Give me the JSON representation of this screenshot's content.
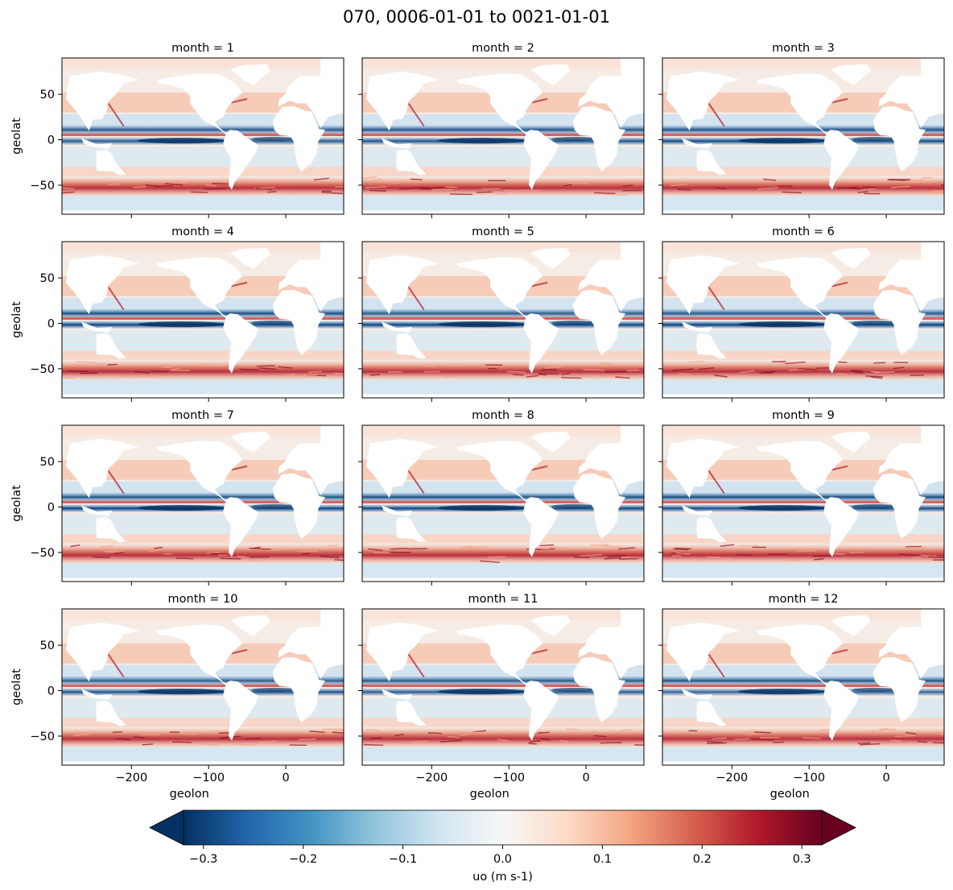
{
  "figure": {
    "suptitle": "070, 0006-01-01 to 0021-01-01"
  },
  "chart_data": {
    "type": "heatmap",
    "title": "070, 0006-01-01 to 0021-01-01",
    "variable": "uo",
    "xlabel": "geolon",
    "ylabel": "geolat",
    "xlim": [
      -290,
      75
    ],
    "ylim": [
      -82,
      90
    ],
    "xticks": [
      -200,
      -100,
      0
    ],
    "yticks": [
      -50,
      0,
      50
    ],
    "xtick_labels": [
      "−200",
      "−100",
      "0"
    ],
    "ytick_labels": [
      "−50",
      "0",
      "50"
    ],
    "panels": [
      {
        "title": "month = 1",
        "month": 1
      },
      {
        "title": "month = 2",
        "month": 2
      },
      {
        "title": "month = 3",
        "month": 3
      },
      {
        "title": "month = 4",
        "month": 4
      },
      {
        "title": "month = 5",
        "month": 5
      },
      {
        "title": "month = 6",
        "month": 6
      },
      {
        "title": "month = 7",
        "month": 7
      },
      {
        "title": "month = 8",
        "month": 8
      },
      {
        "title": "month = 9",
        "month": 9
      },
      {
        "title": "month = 10",
        "month": 10
      },
      {
        "title": "month = 11",
        "month": 11
      },
      {
        "title": "month = 12",
        "month": 12
      }
    ],
    "colorbar": {
      "label": "uo (m s-1)",
      "range": [
        -0.32,
        0.32
      ],
      "ticks": [
        -0.3,
        -0.2,
        -0.1,
        0.0,
        0.1,
        0.2,
        0.3
      ],
      "tick_labels": [
        "−0.3",
        "−0.2",
        "−0.1",
        "0.0",
        "0.1",
        "0.2",
        "0.3"
      ],
      "extend": "both",
      "colormap": "RdBu_r",
      "colors": [
        "#053061",
        "#2166ac",
        "#4393c3",
        "#92c5de",
        "#d1e5f0",
        "#f7f7f7",
        "#fddbc7",
        "#f4a582",
        "#d6604d",
        "#b2182b",
        "#67001f"
      ]
    }
  }
}
